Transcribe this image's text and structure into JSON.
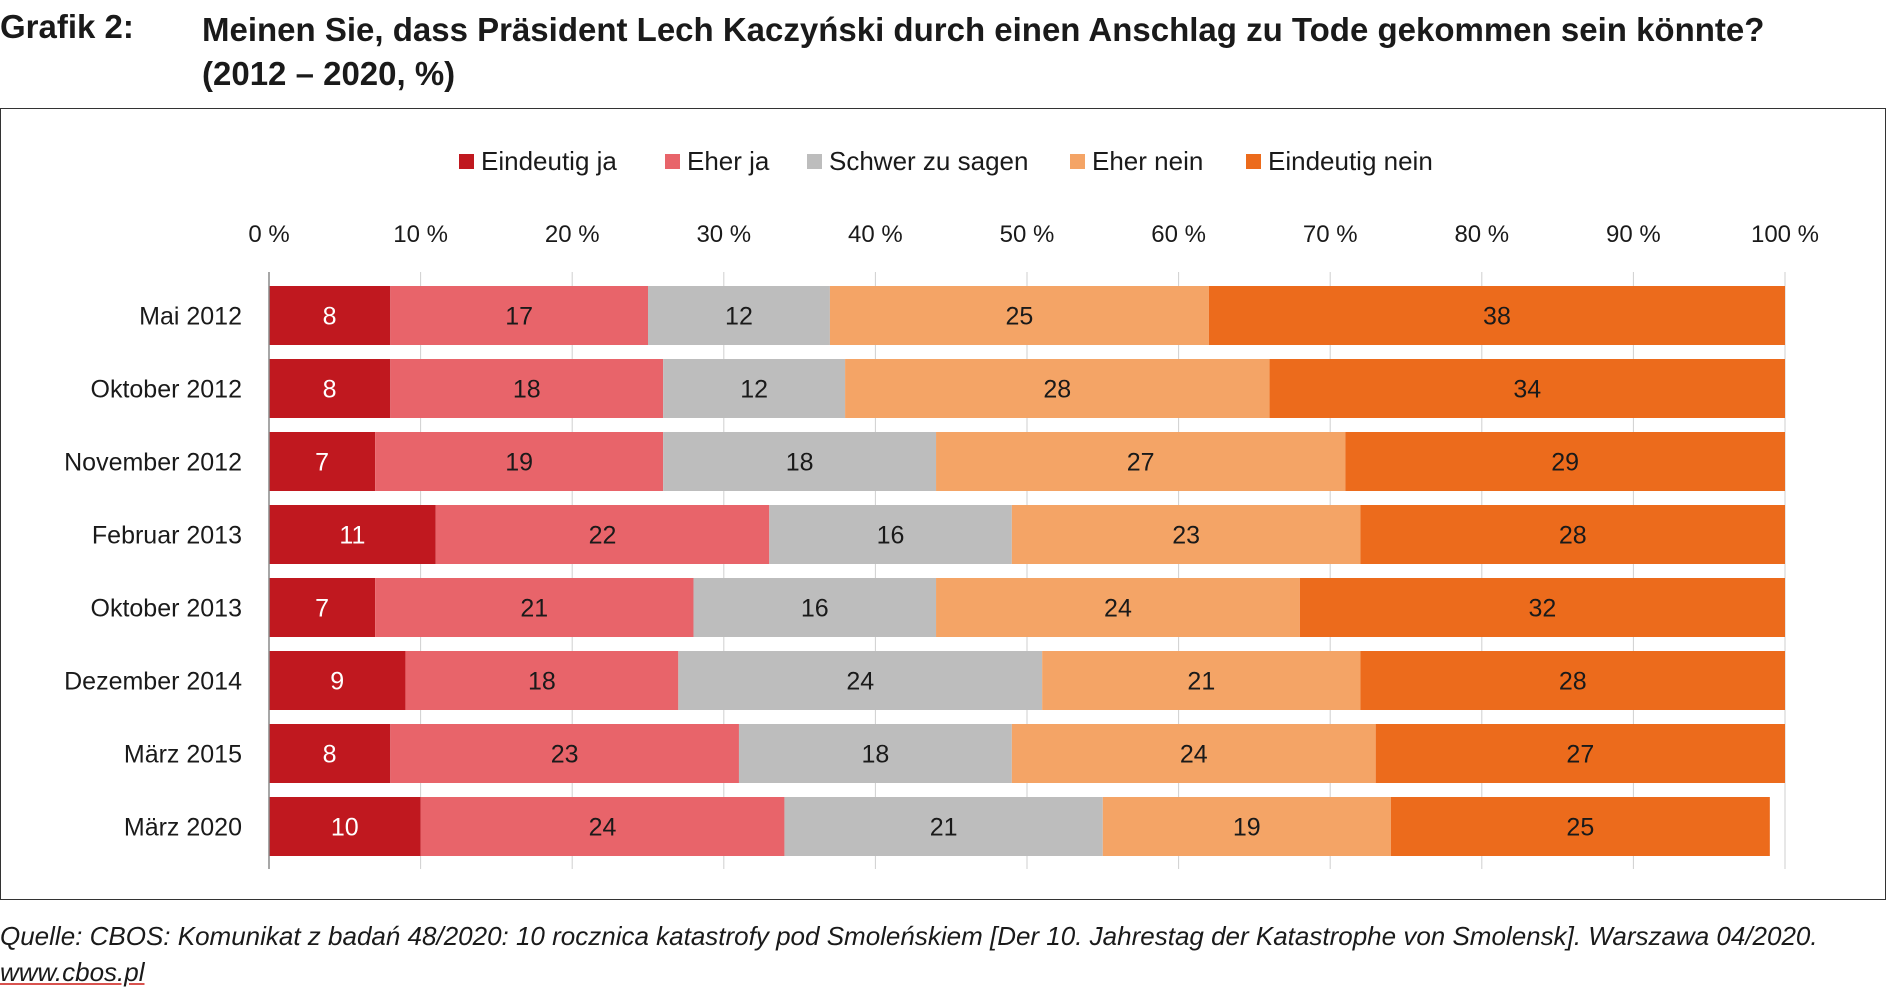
{
  "header": {
    "label": "Grafik 2:",
    "title_line1": "Meinen Sie, dass Präsident Lech Kaczyński durch einen Anschlag zu Tode gekommen sein könnte?",
    "title_line2": "(2012 – 2020, %)"
  },
  "footer": {
    "source_text": "Quelle: CBOS: Komunikat z badań 48/2020: 10 rocznica katastrofy pod Smoleńskiem [Der 10. Jahrestag der Katastrophe von Smolensk]. Warszawa 04/2020. ",
    "source_link": "www.cbos.pl"
  },
  "chart_data": {
    "type": "bar",
    "orientation": "horizontal",
    "stacked": true,
    "title": "Meinen Sie, dass Präsident Lech Kaczyński durch einen Anschlag zu Tode gekommen sein könnte? (2012 – 2020, %)",
    "xlabel": "",
    "ylabel": "",
    "xlim": [
      0,
      100
    ],
    "tick_labels": [
      "0 %",
      "10 %",
      "20 %",
      "30 %",
      "40 %",
      "50 %",
      "60 %",
      "70 %",
      "80 %",
      "90 %",
      "100 %"
    ],
    "legend_position": "top",
    "categories": [
      "Mai 2012",
      "Oktober 2012",
      "November 2012",
      "Februar 2013",
      "Oktober 2013",
      "Dezember 2014",
      "März 2015",
      "März 2020"
    ],
    "series": [
      {
        "name": "Eindeutig ja",
        "color": "#c0181f",
        "label_color": "#ffffff",
        "values": [
          8,
          8,
          7,
          11,
          7,
          9,
          8,
          10
        ]
      },
      {
        "name": "Eher ja",
        "color": "#e8646a",
        "label_color": "#1a1a1a",
        "values": [
          17,
          18,
          19,
          22,
          21,
          18,
          23,
          24
        ]
      },
      {
        "name": "Schwer zu sagen",
        "color": "#bdbdbd",
        "label_color": "#1a1a1a",
        "values": [
          12,
          12,
          18,
          16,
          16,
          24,
          18,
          21
        ]
      },
      {
        "name": "Eher nein",
        "color": "#f4a466",
        "label_color": "#1a1a1a",
        "values": [
          25,
          28,
          27,
          23,
          24,
          21,
          24,
          19
        ]
      },
      {
        "name": "Eindeutig nein",
        "color": "#ec6b1c",
        "label_color": "#1a1a1a",
        "values": [
          38,
          34,
          29,
          28,
          32,
          28,
          27,
          25
        ]
      }
    ]
  }
}
